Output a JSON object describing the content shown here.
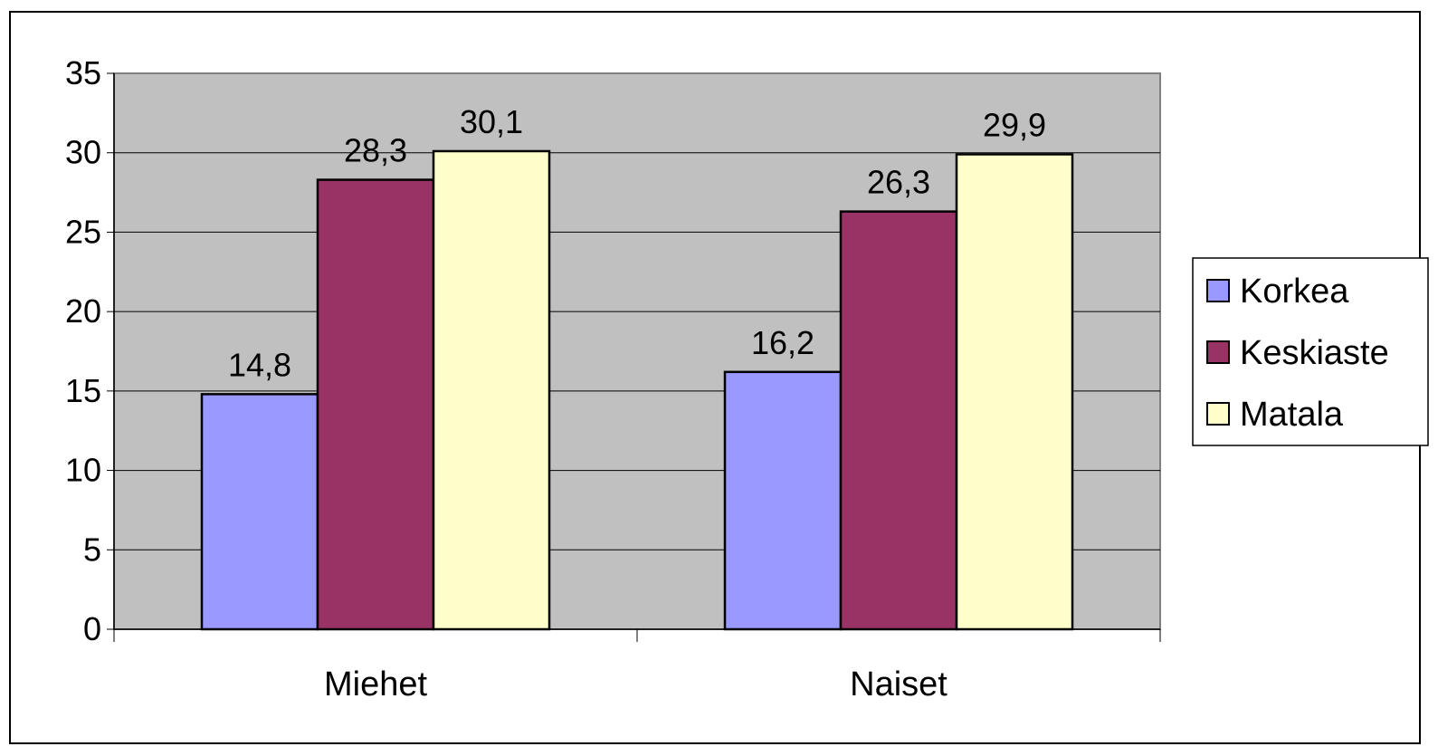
{
  "chart_data": {
    "type": "bar",
    "categories": [
      "Miehet",
      "Naiset"
    ],
    "series": [
      {
        "name": "Korkea",
        "values": [
          14.8,
          16.2
        ],
        "labels": [
          "14,8",
          "16,2"
        ],
        "color": "#9999ff"
      },
      {
        "name": "Keskiaste",
        "values": [
          28.3,
          26.3
        ],
        "labels": [
          "28,3",
          "26,3"
        ],
        "color": "#993366"
      },
      {
        "name": "Matala",
        "values": [
          30.1,
          29.9
        ],
        "labels": [
          "30,1",
          "29,9"
        ],
        "color": "#ffffcc"
      }
    ],
    "title": "",
    "xlabel": "",
    "ylabel": "",
    "ylim": [
      0,
      35
    ],
    "yticks": [
      0,
      5,
      10,
      15,
      20,
      25,
      30,
      35
    ],
    "grid": true,
    "plot_background": "#c0c0c0",
    "legend_position": "right"
  }
}
